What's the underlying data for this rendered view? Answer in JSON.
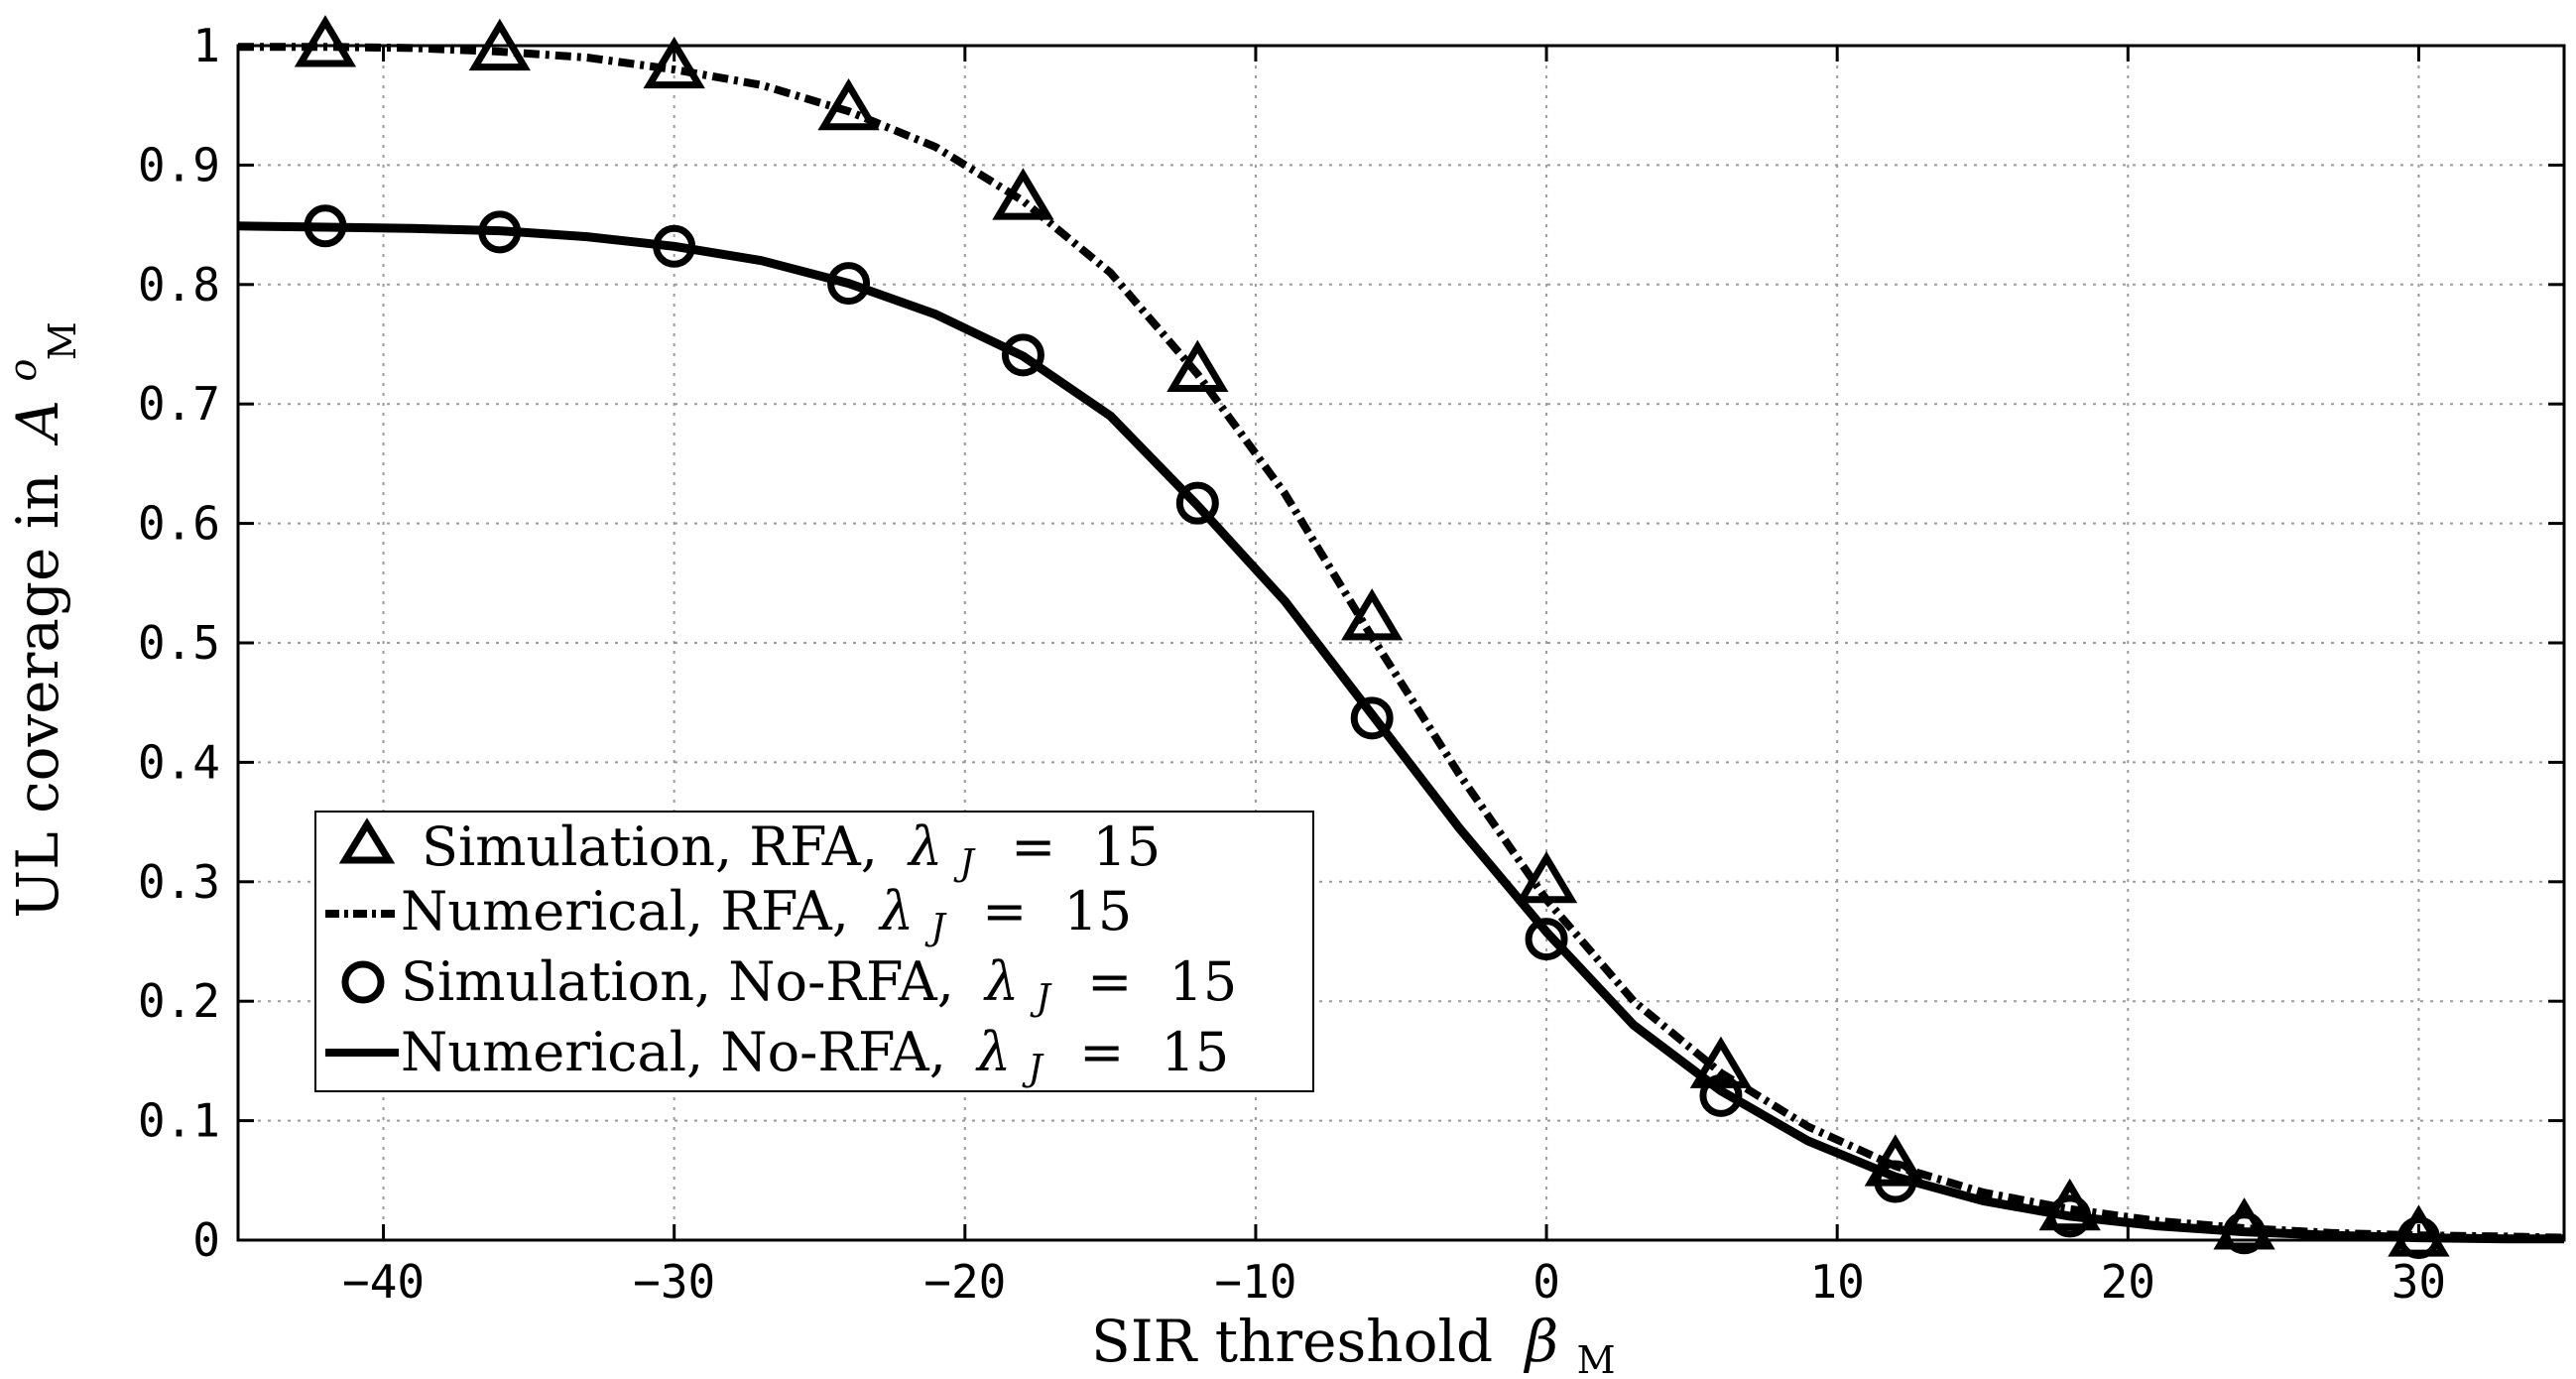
{
  "chart_data": {
    "type": "line",
    "xlabel": "SIR threshold",
    "xlabel_symbol": "β",
    "xlabel_subscript": "M",
    "ylabel": "UL coverage in",
    "ylabel_symbol": "A",
    "ylabel_superscript": "o",
    "ylabel_subscript": "M",
    "xlim": [
      -45,
      35
    ],
    "ylim": [
      0,
      1
    ],
    "xticks": [
      -40,
      -30,
      -20,
      -10,
      0,
      10,
      20,
      30
    ],
    "xtick_labels": [
      "−40",
      "−30",
      "−20",
      "−10",
      "0",
      "10",
      "20",
      "30"
    ],
    "yticks": [
      0,
      0.1,
      0.2,
      0.3,
      0.4,
      0.5,
      0.6,
      0.7,
      0.8,
      0.9,
      1
    ],
    "ytick_labels": [
      "0",
      "0.1",
      "0.2",
      "0.3",
      "0.4",
      "0.5",
      "0.6",
      "0.7",
      "0.8",
      "0.9",
      "1"
    ],
    "grid": true,
    "legend_position": "bottom-left",
    "series": [
      {
        "name": "Simulation, RFA",
        "legend_label": "Simulation, RFA,",
        "marker": "triangle",
        "line": "none",
        "x": [
          -42,
          -36,
          -30,
          -24,
          -18,
          -12,
          -6,
          0,
          6,
          12,
          18,
          24,
          30
        ],
        "values": [
          1.0,
          0.997,
          0.982,
          0.947,
          0.872,
          0.728,
          0.52,
          0.3,
          0.145,
          0.063,
          0.026,
          0.01,
          0.004
        ]
      },
      {
        "name": "Numerical, RFA",
        "legend_label": "Numerical, RFA,",
        "marker": "none",
        "line": "dashdot",
        "x": [
          -45,
          -42,
          -39,
          -36,
          -33,
          -30,
          -27,
          -24,
          -21,
          -18,
          -15,
          -12,
          -9,
          -6,
          -3,
          0,
          3,
          6,
          9,
          12,
          15,
          18,
          21,
          24,
          27,
          30,
          33,
          35
        ],
        "values": [
          0.999,
          0.999,
          0.998,
          0.995,
          0.99,
          0.98,
          0.967,
          0.945,
          0.915,
          0.87,
          0.81,
          0.725,
          0.625,
          0.505,
          0.39,
          0.285,
          0.2,
          0.14,
          0.095,
          0.062,
          0.04,
          0.026,
          0.016,
          0.01,
          0.006,
          0.004,
          0.003,
          0.002
        ]
      },
      {
        "name": "Simulation, No-RFA",
        "legend_label": "Simulation, No-RFA,",
        "marker": "circle",
        "line": "none",
        "x": [
          -42,
          -36,
          -30,
          -24,
          -18,
          -12,
          -6,
          0,
          6,
          12,
          18,
          24,
          30
        ],
        "values": [
          0.849,
          0.844,
          0.832,
          0.801,
          0.741,
          0.617,
          0.437,
          0.252,
          0.121,
          0.049,
          0.02,
          0.006,
          0.002
        ]
      },
      {
        "name": "Numerical, No-RFA",
        "legend_label": "Numerical, No-RFA,",
        "marker": "none",
        "line": "solid",
        "x": [
          -45,
          -42,
          -39,
          -36,
          -33,
          -30,
          -27,
          -24,
          -21,
          -18,
          -15,
          -12,
          -9,
          -6,
          -3,
          0,
          3,
          6,
          9,
          12,
          15,
          18,
          21,
          24,
          27,
          30,
          33,
          35
        ],
        "values": [
          0.849,
          0.848,
          0.847,
          0.845,
          0.84,
          0.832,
          0.82,
          0.801,
          0.775,
          0.74,
          0.69,
          0.615,
          0.535,
          0.44,
          0.345,
          0.258,
          0.18,
          0.125,
          0.083,
          0.053,
          0.033,
          0.02,
          0.012,
          0.007,
          0.004,
          0.002,
          0.001,
          0.001
        ]
      }
    ],
    "legend_param": {
      "symbol": "λ",
      "subscript": "J",
      "relation": "=",
      "value": "15"
    }
  }
}
